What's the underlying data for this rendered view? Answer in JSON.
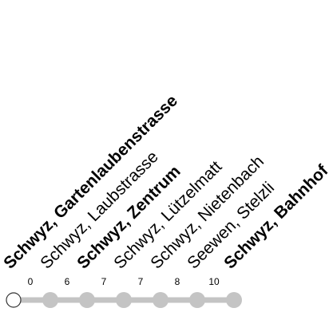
{
  "route": {
    "line_color": "#c4c4c4",
    "start_marker_fill": "#ffffff",
    "start_marker_stroke": "#333333",
    "text_color": "#000000",
    "stops": [
      {
        "name": "Schwyz, Gartenlaubenstrasse",
        "minutes": "0",
        "bold": true
      },
      {
        "name": "Schwyz, Laubstrasse",
        "minutes": "6",
        "bold": false
      },
      {
        "name": "Schwyz, Zentrum",
        "minutes": "7",
        "bold": true
      },
      {
        "name": "Schwyz, Lützelmatt",
        "minutes": "7",
        "bold": false
      },
      {
        "name": "Schwyz, Nietenbach",
        "minutes": "8",
        "bold": false
      },
      {
        "name": "Seewen, Stelzli",
        "minutes": "10",
        "bold": false
      },
      {
        "name": "Schwyz, Bahnhof",
        "minutes": "",
        "bold": true
      }
    ]
  }
}
